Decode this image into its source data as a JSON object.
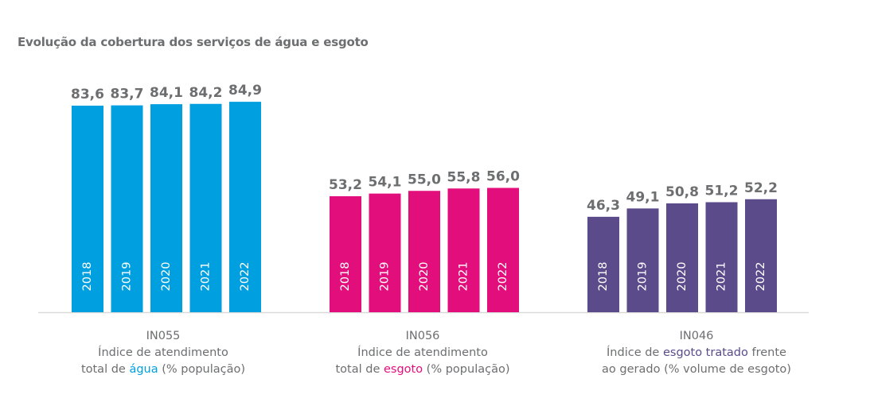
{
  "title": "Evolução da cobertura dos serviços de água e esgoto",
  "chart_data": {
    "type": "bar",
    "title": "Evolução da cobertura dos serviços de água e esgoto",
    "categories": [
      "2018",
      "2019",
      "2020",
      "2021",
      "2022"
    ],
    "series": [
      {
        "name": "IN055",
        "color": "#009fe0",
        "values": [
          83.6,
          83.7,
          84.1,
          84.2,
          84.9
        ],
        "labels": [
          "83,6",
          "83,7",
          "84,1",
          "84,2",
          "84,9"
        ],
        "caption": {
          "code": "IN055",
          "line1": "Índice de atendimento",
          "line2_pre": "total de ",
          "line2_hl": "água",
          "line2_post": " (% população)"
        }
      },
      {
        "name": "IN056",
        "color": "#e20e7c",
        "values": [
          53.2,
          54.1,
          55.0,
          55.8,
          56.0
        ],
        "labels": [
          "53,2",
          "54,1",
          "55,0",
          "55,8",
          "56,0"
        ],
        "caption": {
          "code": "IN056",
          "line1": "Índice de atendimento",
          "line2_pre": "total de ",
          "line2_hl": "esgoto",
          "line2_post": " (% população)"
        }
      },
      {
        "name": "IN046",
        "color": "#5b4b8a",
        "values": [
          46.3,
          49.1,
          50.8,
          51.2,
          52.2
        ],
        "labels": [
          "46,3",
          "49,1",
          "50,8",
          "51,2",
          "52,2"
        ],
        "caption": {
          "code": "IN046",
          "line1_pre": "Índice de ",
          "line1_hl": "esgoto tratado",
          "line1_post": " frente",
          "line2": "ao gerado (% volume de esgoto)"
        }
      }
    ],
    "xlabel": "",
    "ylabel": "",
    "grid": false,
    "legend": "none"
  }
}
